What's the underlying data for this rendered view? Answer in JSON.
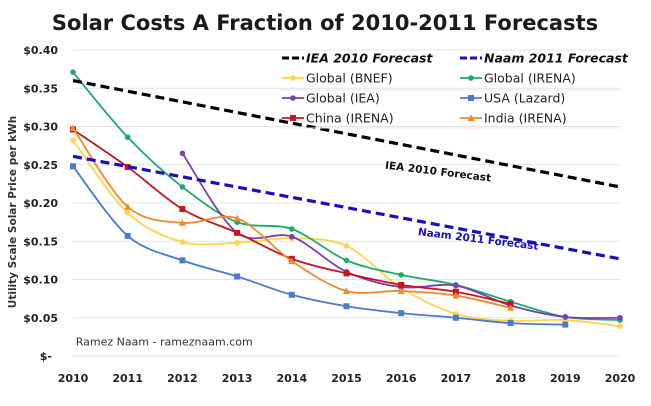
{
  "chart_data": {
    "type": "line",
    "title": "Solar Costs A Fraction of 2010-2011 Forecasts",
    "xlabel": "",
    "ylabel": "Utility Scale Solar Price per kWh",
    "ylim": [
      0,
      0.4
    ],
    "yticks": [
      0,
      0.05,
      0.1,
      0.15,
      0.2,
      0.25,
      0.3,
      0.35,
      0.4
    ],
    "ytick_labels": [
      "$-",
      "$0.05",
      "$0.10",
      "$0.15",
      "$0.20",
      "$0.25",
      "$0.30",
      "$0.35",
      "$0.40"
    ],
    "x": [
      2010,
      2011,
      2012,
      2013,
      2014,
      2015,
      2016,
      2017,
      2018,
      2019,
      2020
    ],
    "xtick_labels": [
      "2010",
      "2011",
      "2012",
      "2013",
      "2014",
      "2015",
      "2016",
      "2017",
      "2018",
      "2019",
      "2020"
    ],
    "grid": "horizontal",
    "legend_position": "top-right",
    "series": [
      {
        "name": "IEA 2010 Forecast",
        "color": "#000000",
        "style": "dashed",
        "marker": "none",
        "bold_legend": true,
        "x": [
          2010,
          2020
        ],
        "values": [
          0.36,
          0.221
        ]
      },
      {
        "name": "Naam 2011 Forecast",
        "color": "#1a0fbf",
        "style": "dashed",
        "marker": "none",
        "bold_legend": true,
        "x": [
          2010,
          2020
        ],
        "values": [
          0.261,
          0.127
        ]
      },
      {
        "name": "Global (BNEF)",
        "color": "#ffd54a",
        "style": "solid",
        "marker": "circle",
        "x": [
          2010,
          2011,
          2012,
          2013,
          2014,
          2015,
          2016,
          2017,
          2018,
          2019,
          2020
        ],
        "values": [
          0.282,
          0.187,
          0.149,
          0.148,
          0.154,
          0.144,
          0.089,
          0.055,
          0.046,
          0.047,
          0.039
        ]
      },
      {
        "name": "Global (IRENA)",
        "color": "#1eaa6a",
        "style": "solid",
        "marker": "circle",
        "x": [
          2010,
          2011,
          2012,
          2013,
          2014,
          2015,
          2016,
          2017,
          2018,
          2019,
          2020
        ],
        "values": [
          0.371,
          0.286,
          0.221,
          0.175,
          0.166,
          0.125,
          0.106,
          0.093,
          0.071,
          0.051,
          0.047
        ]
      },
      {
        "name": "Global (IEA)",
        "color": "#7a3fb0",
        "style": "solid",
        "marker": "circle",
        "x": [
          2012,
          2013,
          2014,
          2015,
          2016,
          2017,
          2018,
          2019,
          2020
        ],
        "values": [
          0.265,
          0.161,
          0.156,
          0.11,
          0.09,
          0.092,
          0.066,
          0.051,
          0.05
        ]
      },
      {
        "name": "USA (Lazard)",
        "color": "#4a7bcc",
        "style": "solid",
        "marker": "square",
        "x": [
          2010,
          2011,
          2012,
          2013,
          2014,
          2015,
          2016,
          2017,
          2018,
          2019
        ],
        "values": [
          0.248,
          0.157,
          0.125,
          0.104,
          0.08,
          0.065,
          0.056,
          0.05,
          0.043,
          0.041
        ]
      },
      {
        "name": "China (IRENA)",
        "color": "#c8141e",
        "style": "solid",
        "marker": "square",
        "x": [
          2010,
          2011,
          2012,
          2013,
          2014,
          2015,
          2016,
          2017,
          2018
        ],
        "values": [
          0.296,
          0.247,
          0.192,
          0.161,
          0.127,
          0.108,
          0.093,
          0.084,
          0.068
        ]
      },
      {
        "name": "India (IRENA)",
        "color": "#f08a2c",
        "style": "solid",
        "marker": "triangle",
        "x": [
          2010,
          2011,
          2012,
          2013,
          2014,
          2015,
          2016,
          2017,
          2018
        ],
        "values": [
          0.298,
          0.195,
          0.174,
          0.18,
          0.124,
          0.085,
          0.085,
          0.079,
          0.063
        ]
      }
    ],
    "annotations": [
      {
        "text": "IEA 2010 Forecast",
        "color": "#111111",
        "anchor_x": 2015.7,
        "anchor_y": 0.245,
        "angle_deg": 7
      },
      {
        "text": "Naam 2011 Forecast",
        "color": "#1a0fbf",
        "anchor_x": 2016.3,
        "anchor_y": 0.158,
        "angle_deg": 7
      },
      {
        "text": "Ramez Naam - rameznaam.com",
        "color": "#333333",
        "anchor_x": 2010.05,
        "anchor_y": 0.014,
        "angle_deg": 0
      }
    ]
  }
}
